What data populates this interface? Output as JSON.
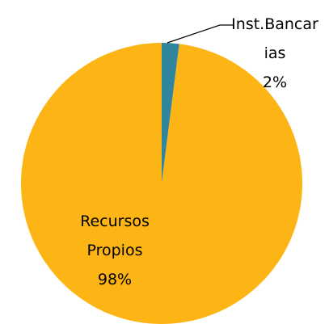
{
  "chart_data": {
    "type": "pie",
    "categories": [
      "Inst.Bancarias",
      "Recursos Propios"
    ],
    "values": [
      2,
      98
    ],
    "value_labels": [
      "2%",
      "98%"
    ],
    "colors": [
      "#31859c",
      "#fdb515"
    ]
  }
}
